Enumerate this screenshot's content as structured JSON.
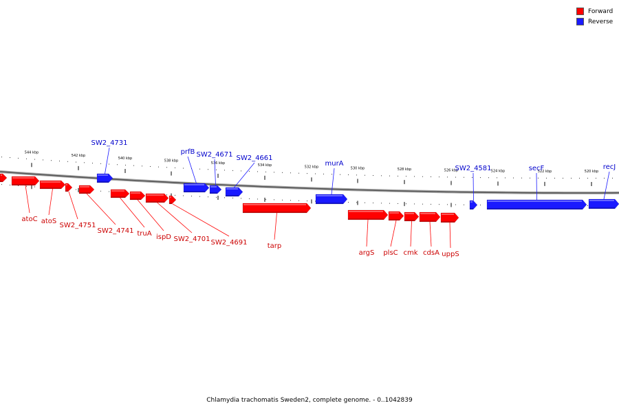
{
  "legend": [
    {
      "label": "Forward",
      "color": "#ff0000"
    },
    {
      "label": "Reverse",
      "color": "#1a1aff"
    }
  ],
  "caption": "Chlamydia trachomatis Sweden2, complete genome. - 0..1042839",
  "scale_labels": [
    "544 kbp",
    "542 kbp",
    "540 kbp",
    "538 kbp",
    "536 kbp",
    "534 kbp",
    "532 kbp",
    "530 kbp",
    "528 kbp",
    "526 kbp",
    "524 kbp",
    "522 kbp",
    "520 kbp"
  ],
  "genes": [
    {
      "label": "",
      "strand": "forward"
    },
    {
      "label": "atoC",
      "strand": "forward"
    },
    {
      "label": "atoS",
      "strand": "forward"
    },
    {
      "label": "SW2_4751",
      "strand": "forward"
    },
    {
      "label": "SW2_4741",
      "strand": "forward"
    },
    {
      "label": "truA",
      "strand": "forward"
    },
    {
      "label": "ispD",
      "strand": "forward"
    },
    {
      "label": "SW2_4701",
      "strand": "forward"
    },
    {
      "label": "SW2_4691",
      "strand": "forward"
    },
    {
      "label": "tarp",
      "strand": "forward"
    },
    {
      "label": "argS",
      "strand": "forward"
    },
    {
      "label": "plsC",
      "strand": "forward"
    },
    {
      "label": "cmk",
      "strand": "forward"
    },
    {
      "label": "cdsA",
      "strand": "forward"
    },
    {
      "label": "uppS",
      "strand": "forward"
    },
    {
      "label": "SW2_4731",
      "strand": "reverse"
    },
    {
      "label": "prfB",
      "strand": "reverse"
    },
    {
      "label": "SW2_4671",
      "strand": "reverse"
    },
    {
      "label": "SW2_4661",
      "strand": "reverse"
    },
    {
      "label": "murA",
      "strand": "reverse"
    },
    {
      "label": "SW2_4581",
      "strand": "reverse"
    },
    {
      "label": "secF",
      "strand": "reverse"
    },
    {
      "label": "recJ",
      "strand": "reverse"
    }
  ]
}
